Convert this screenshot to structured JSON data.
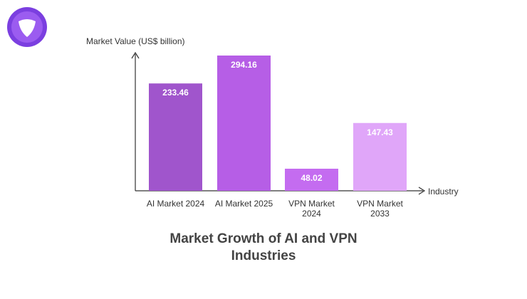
{
  "chart_data": {
    "type": "bar",
    "title": "Market Growth of AI and VPN Industries",
    "y_label": "Market Value (US$ billion)",
    "x_label": "Industry",
    "categories": [
      "AI Market 2024",
      "AI Market 2025",
      "VPN Market 2024",
      "VPN Market 2033"
    ],
    "values": [
      233.46,
      294.16,
      48.02,
      147.43
    ],
    "colors": [
      "#a055cc",
      "#b65ee6",
      "#c46cf0",
      "#e0a6f9"
    ]
  }
}
